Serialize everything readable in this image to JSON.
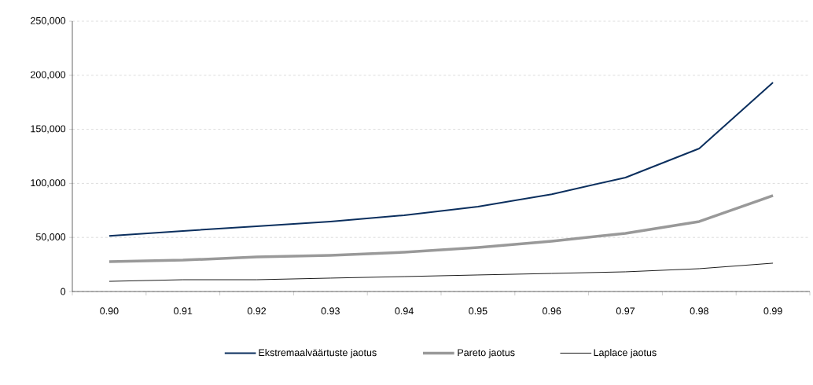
{
  "chart_data": {
    "type": "line",
    "categories": [
      "0.90",
      "0.91",
      "0.92",
      "0.93",
      "0.94",
      "0.95",
      "0.96",
      "0.97",
      "0.98",
      "0.99"
    ],
    "series": [
      {
        "name": "Ekstremaalväärtuste jaotus",
        "color": "#0b2f5e",
        "values": [
          51500,
          56000,
          60300,
          64700,
          70500,
          78500,
          90000,
          105400,
          132300,
          193300
        ]
      },
      {
        "name": "Pareto jaotus",
        "color": "#999999",
        "values": [
          27600,
          29000,
          32000,
          33400,
          36300,
          40700,
          46500,
          53800,
          64700,
          88700
        ]
      },
      {
        "name": "Laplace jaotus",
        "color": "#000000",
        "values": [
          9400,
          10900,
          10900,
          12400,
          13800,
          15300,
          16700,
          18200,
          21100,
          26200
        ]
      }
    ],
    "ylim": [
      0,
      250000
    ],
    "yticks": [
      {
        "value": 0,
        "label": "0"
      },
      {
        "value": 50000,
        "label": "50,000"
      },
      {
        "value": 100000,
        "label": "100,000"
      },
      {
        "value": 150000,
        "label": "150,000"
      },
      {
        "value": 200000,
        "label": "200,000"
      },
      {
        "value": 250000,
        "label": "250,000"
      }
    ],
    "grid": "y",
    "legend": "bottom",
    "line_style": "solid"
  }
}
